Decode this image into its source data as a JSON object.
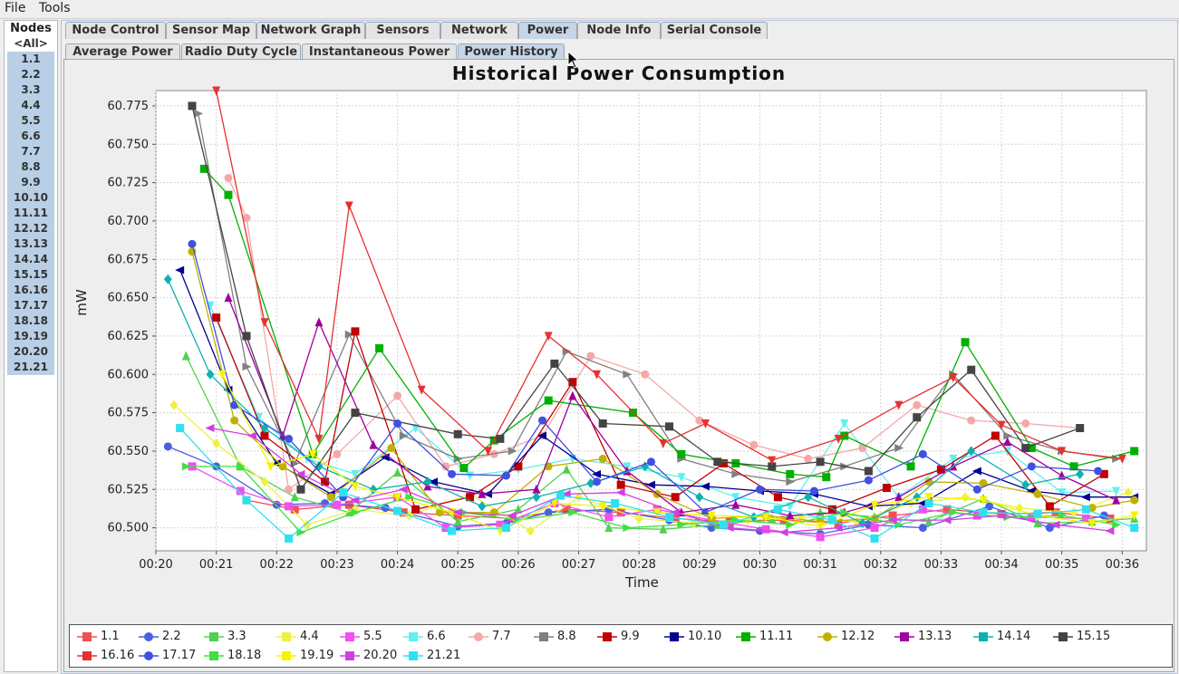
{
  "menubar": {
    "file": "File",
    "tools": "Tools"
  },
  "nodes": {
    "title": "Nodes",
    "items": [
      "<All>",
      "1.1",
      "2.2",
      "3.3",
      "4.4",
      "5.5",
      "6.6",
      "7.7",
      "8.8",
      "9.9",
      "10.10",
      "11.11",
      "12.12",
      "13.13",
      "14.14",
      "15.15",
      "16.16",
      "17.17",
      "18.18",
      "19.19",
      "20.20",
      "21.21"
    ]
  },
  "tabs": [
    "Node Control",
    "Sensor Map",
    "Network Graph",
    "Sensors",
    "Network",
    "Power",
    "Node Info",
    "Serial Console"
  ],
  "active_tab": "Power",
  "subtabs": [
    "Average Power",
    "Radio Duty Cycle",
    "Instantaneous Power",
    "Power History"
  ],
  "active_subtab": "Power History",
  "chart_data": {
    "type": "line",
    "title": "Historical Power Consumption",
    "xlabel": "Time",
    "ylabel": "mW",
    "x_ticks": [
      "00:20",
      "00:21",
      "00:22",
      "00:23",
      "00:24",
      "00:25",
      "00:26",
      "00:27",
      "00:28",
      "00:29",
      "00:30",
      "00:31",
      "00:32",
      "00:33",
      "00:34",
      "00:35",
      "00:36"
    ],
    "xlim": [
      20,
      36.4
    ],
    "y_ticks": [
      "60.500",
      "60.525",
      "60.550",
      "60.575",
      "60.600",
      "60.625",
      "60.650",
      "60.675",
      "60.700",
      "60.725",
      "60.750",
      "60.775"
    ],
    "ylim": [
      60.485,
      60.785
    ],
    "grid": true,
    "legend_position": "bottom",
    "series": [
      {
        "name": "1.1",
        "color": "#f05050",
        "marker": "square",
        "x": [
          21.5,
          22.3,
          23.2,
          24.1,
          25.0,
          25.9,
          26.8,
          27.7,
          28.6,
          29.5,
          30.4,
          31.3,
          32.2,
          33.1,
          34.0,
          34.9,
          35.8
        ],
        "y": [
          60.518,
          60.512,
          60.515,
          60.51,
          60.508,
          60.506,
          60.512,
          60.51,
          60.506,
          60.504,
          60.505,
          60.503,
          60.508,
          60.512,
          60.509,
          60.51,
          60.506
        ]
      },
      {
        "name": "2.2",
        "color": "#4a60e0",
        "marker": "circle",
        "x": [
          20.2,
          21.0,
          22.0,
          22.8,
          23.8,
          25.0,
          25.8,
          26.5,
          27.5,
          28.5,
          29.2,
          30.0,
          31.0,
          31.8,
          32.7,
          33.8,
          34.8,
          35.7
        ],
        "y": [
          60.553,
          60.54,
          60.515,
          60.516,
          60.513,
          60.501,
          60.503,
          60.51,
          60.512,
          60.505,
          60.5,
          60.498,
          60.496,
          60.502,
          60.5,
          60.514,
          60.5,
          60.508
        ]
      },
      {
        "name": "3.3",
        "color": "#50d050",
        "marker": "triangle-up",
        "x": [
          20.5,
          21.4,
          22.3,
          23.2,
          24.0,
          25.0,
          26.0,
          26.8,
          27.5,
          28.4,
          29.3,
          30.2,
          31.0,
          31.9,
          32.8,
          33.7,
          34.6,
          35.5,
          36.2
        ],
        "y": [
          60.612,
          60.54,
          60.52,
          60.51,
          60.536,
          60.504,
          60.512,
          60.538,
          60.5,
          60.499,
          60.502,
          60.506,
          60.51,
          60.507,
          60.504,
          60.519,
          60.503,
          60.504,
          60.506
        ]
      },
      {
        "name": "4.4",
        "color": "#f0f040",
        "marker": "diamond",
        "x": [
          20.3,
          21.0,
          21.8,
          22.5,
          23.3,
          24.2,
          25.2,
          26.2,
          27.0,
          28.0,
          28.9,
          29.8,
          30.7,
          31.6,
          32.5,
          33.4,
          34.3,
          35.2,
          36.1
        ],
        "y": [
          60.58,
          60.555,
          60.53,
          60.502,
          60.512,
          60.508,
          60.522,
          60.498,
          60.52,
          60.506,
          60.503,
          60.505,
          60.507,
          60.504,
          60.516,
          60.52,
          60.513,
          60.51,
          60.523
        ]
      },
      {
        "name": "5.5",
        "color": "#f050f0",
        "marker": "square",
        "x": [
          20.6,
          21.4,
          22.2,
          23.0,
          24.0,
          24.8,
          25.7,
          26.6,
          27.5,
          28.3,
          29.2,
          30.1,
          31.0,
          31.9,
          32.7,
          33.6,
          34.5,
          35.4
        ],
        "y": [
          60.54,
          60.524,
          60.514,
          60.515,
          60.52,
          60.5,
          60.502,
          60.516,
          60.507,
          60.512,
          60.505,
          60.499,
          60.494,
          60.5,
          60.512,
          60.508,
          60.507,
          60.506
        ]
      },
      {
        "name": "6.6",
        "color": "#60f0f0",
        "marker": "triangle-down",
        "x": [
          20.9,
          21.7,
          22.5,
          23.3,
          24.3,
          25.2,
          26.0,
          26.9,
          27.8,
          28.7,
          29.6,
          30.5,
          31.4,
          32.3,
          33.2,
          34.1,
          35.0,
          35.9
        ],
        "y": [
          60.645,
          60.572,
          60.545,
          60.535,
          60.565,
          60.534,
          60.538,
          60.545,
          60.54,
          60.533,
          60.52,
          60.514,
          60.568,
          60.52,
          60.545,
          60.55,
          60.523,
          60.524
        ]
      },
      {
        "name": "7.7",
        "color": "#f4a8a8",
        "marker": "circle",
        "x": [
          21.2,
          21.5,
          22.2,
          23.0,
          24.0,
          24.8,
          25.6,
          26.4,
          27.2,
          28.1,
          29.0,
          29.9,
          30.8,
          31.7,
          32.6,
          33.5,
          34.4,
          35.3
        ],
        "y": [
          60.728,
          60.702,
          60.525,
          60.548,
          60.586,
          60.54,
          60.548,
          60.56,
          60.612,
          60.6,
          60.57,
          60.554,
          60.545,
          60.552,
          60.58,
          60.57,
          60.568,
          60.565
        ]
      },
      {
        "name": "8.8",
        "color": "#808080",
        "marker": "triangle-right",
        "x": [
          20.7,
          21.5,
          22.3,
          23.2,
          24.1,
          25.0,
          25.9,
          26.8,
          27.8,
          28.7,
          29.6,
          30.5,
          31.4,
          32.3,
          33.2,
          34.1,
          35.0,
          35.9
        ],
        "y": [
          60.77,
          60.605,
          60.542,
          60.626,
          60.56,
          60.545,
          60.55,
          60.615,
          60.6,
          60.545,
          60.535,
          60.53,
          60.54,
          60.552,
          60.6,
          60.56,
          60.55,
          60.545
        ]
      },
      {
        "name": "9.9",
        "color": "#c00000",
        "marker": "square",
        "x": [
          21.0,
          21.8,
          22.8,
          23.3,
          24.3,
          25.2,
          26.0,
          26.9,
          27.7,
          28.6,
          29.4,
          30.3,
          31.2,
          32.1,
          33.0,
          33.9,
          34.8,
          35.7
        ],
        "y": [
          60.637,
          60.56,
          60.53,
          60.628,
          60.512,
          60.52,
          60.54,
          60.595,
          60.528,
          60.52,
          60.542,
          60.52,
          60.512,
          60.526,
          60.538,
          60.56,
          60.514,
          60.535
        ]
      },
      {
        "name": "10.10",
        "color": "#000090",
        "marker": "triangle-left",
        "x": [
          20.4,
          21.2,
          22.0,
          22.9,
          23.8,
          24.6,
          25.5,
          26.4,
          27.3,
          28.2,
          29.1,
          30.0,
          30.9,
          31.8,
          32.7,
          33.6,
          34.5,
          35.4,
          36.2
        ],
        "y": [
          60.668,
          60.59,
          60.542,
          60.522,
          60.546,
          60.53,
          60.522,
          60.56,
          60.535,
          60.528,
          60.527,
          60.524,
          60.522,
          60.514,
          60.516,
          60.537,
          60.524,
          60.52,
          60.52
        ]
      },
      {
        "name": "11.11",
        "color": "#00b000",
        "marker": "square",
        "x": [
          20.8,
          21.2,
          22.6,
          23.7,
          25.1,
          25.6,
          26.5,
          27.9,
          28.7,
          29.6,
          30.5,
          31.1,
          31.4,
          32.5,
          33.4,
          34.5,
          35.2,
          36.2
        ],
        "y": [
          60.734,
          60.717,
          60.548,
          60.617,
          60.539,
          60.557,
          60.583,
          60.575,
          60.548,
          60.542,
          60.535,
          60.533,
          60.56,
          60.54,
          60.621,
          60.552,
          60.54,
          60.55
        ]
      },
      {
        "name": "12.12",
        "color": "#c0b000",
        "marker": "circle",
        "x": [
          20.6,
          21.3,
          22.1,
          22.9,
          23.9,
          24.7,
          25.6,
          26.5,
          27.4,
          28.3,
          29.2,
          30.1,
          31.0,
          31.9,
          32.8,
          33.7,
          34.6,
          35.5,
          36.2
        ],
        "y": [
          60.68,
          60.57,
          60.54,
          60.52,
          60.552,
          60.51,
          60.51,
          60.54,
          60.545,
          60.522,
          60.506,
          60.508,
          60.504,
          60.506,
          60.53,
          60.529,
          60.522,
          60.513,
          60.518
        ]
      },
      {
        "name": "13.13",
        "color": "#a000a0",
        "marker": "triangle-up",
        "x": [
          21.2,
          22.1,
          22.7,
          23.6,
          24.5,
          25.4,
          26.3,
          26.9,
          27.8,
          28.7,
          29.6,
          30.5,
          31.4,
          32.3,
          33.2,
          34.1,
          35.0,
          35.9
        ],
        "y": [
          60.65,
          60.56,
          60.634,
          60.554,
          60.527,
          60.522,
          60.525,
          60.586,
          60.537,
          60.51,
          60.515,
          60.508,
          60.51,
          60.52,
          60.54,
          60.556,
          60.534,
          60.518
        ]
      },
      {
        "name": "14.14",
        "color": "#10b0b0",
        "marker": "diamond",
        "x": [
          20.2,
          20.9,
          21.8,
          22.7,
          23.6,
          24.5,
          25.4,
          26.3,
          27.2,
          28.1,
          29.0,
          29.9,
          30.8,
          31.7,
          32.6,
          33.5,
          34.4,
          35.3
        ],
        "y": [
          60.662,
          60.6,
          60.565,
          60.54,
          60.525,
          60.53,
          60.514,
          60.52,
          60.529,
          60.54,
          60.52,
          60.507,
          60.52,
          60.503,
          60.52,
          60.55,
          60.528,
          60.535
        ]
      },
      {
        "name": "15.15",
        "color": "#444444",
        "marker": "square",
        "x": [
          20.6,
          21.5,
          22.4,
          23.3,
          25.0,
          25.7,
          26.6,
          27.4,
          28.5,
          29.3,
          30.2,
          31.0,
          31.8,
          32.6,
          33.5,
          34.4,
          35.3
        ],
        "y": [
          60.775,
          60.625,
          60.525,
          60.575,
          60.561,
          60.558,
          60.607,
          60.568,
          60.566,
          60.543,
          60.54,
          60.543,
          60.537,
          60.572,
          60.603,
          60.552,
          60.565
        ]
      },
      {
        "name": "16.16",
        "color": "#e83030",
        "marker": "triangle-down",
        "x": [
          21.0,
          21.8,
          22.7,
          23.2,
          24.4,
          25.5,
          26.5,
          27.3,
          28.4,
          29.1,
          30.2,
          31.3,
          32.3,
          33.2,
          34.0,
          35.0,
          36.0
        ],
        "y": [
          60.785,
          60.634,
          60.558,
          60.71,
          60.59,
          60.55,
          60.625,
          60.6,
          60.555,
          60.568,
          60.544,
          60.558,
          60.58,
          60.598,
          60.567,
          60.55,
          60.545
        ]
      },
      {
        "name": "17.17",
        "color": "#4050e0",
        "marker": "circle",
        "x": [
          20.6,
          21.3,
          22.2,
          23.1,
          24.0,
          24.9,
          25.8,
          26.4,
          27.3,
          28.2,
          29.1,
          30.0,
          30.9,
          31.8,
          32.7,
          33.6,
          34.5,
          35.6
        ],
        "y": [
          60.685,
          60.58,
          60.558,
          60.52,
          60.568,
          60.535,
          60.534,
          60.57,
          60.53,
          60.543,
          60.51,
          60.525,
          60.524,
          60.531,
          60.548,
          60.525,
          60.54,
          60.537
        ]
      },
      {
        "name": "18.18",
        "color": "#40e040",
        "marker": "triangle-right",
        "x": [
          20.5,
          21.4,
          22.4,
          23.3,
          24.2,
          25.1,
          26.0,
          26.9,
          27.8,
          28.7,
          29.6,
          30.5,
          31.4,
          32.3,
          33.2,
          34.1,
          35.0,
          35.9
        ],
        "y": [
          60.54,
          60.54,
          60.497,
          60.51,
          60.52,
          60.51,
          60.505,
          60.51,
          60.5,
          60.502,
          60.505,
          60.502,
          60.51,
          60.502,
          60.51,
          60.507,
          60.508,
          60.502
        ]
      },
      {
        "name": "19.19",
        "color": "#f4f400",
        "marker": "triangle-down",
        "x": [
          21.1,
          21.9,
          22.6,
          23.3,
          24.0,
          24.9,
          25.7,
          26.6,
          27.4,
          28.3,
          29.2,
          30.1,
          31.0,
          31.9,
          32.8,
          33.7,
          34.6,
          35.5,
          36.2
        ],
        "y": [
          60.6,
          60.54,
          60.548,
          60.527,
          60.52,
          60.51,
          60.498,
          60.516,
          60.514,
          60.51,
          60.508,
          60.507,
          60.501,
          60.515,
          60.52,
          60.518,
          60.508,
          60.503,
          60.508
        ]
      },
      {
        "name": "20.20",
        "color": "#d040e0",
        "marker": "triangle-left",
        "x": [
          20.9,
          21.6,
          22.4,
          23.3,
          24.1,
          25.0,
          25.9,
          26.8,
          27.7,
          28.6,
          29.5,
          30.4,
          31.3,
          32.2,
          33.1,
          34.0,
          34.9,
          35.8
        ],
        "y": [
          60.565,
          60.56,
          60.535,
          60.518,
          60.525,
          60.51,
          60.508,
          60.522,
          60.523,
          60.51,
          60.5,
          60.497,
          60.5,
          60.505,
          60.505,
          60.508,
          60.502,
          60.498
        ]
      },
      {
        "name": "21.21",
        "color": "#30e0f0",
        "marker": "square",
        "x": [
          20.4,
          21.5,
          22.2,
          23.1,
          24.0,
          24.9,
          25.8,
          26.7,
          27.6,
          28.5,
          29.4,
          30.3,
          31.2,
          31.9,
          32.8,
          33.7,
          34.6,
          35.4,
          36.2
        ],
        "y": [
          60.565,
          60.518,
          60.493,
          60.523,
          60.511,
          60.498,
          60.5,
          60.521,
          60.516,
          60.507,
          60.502,
          60.512,
          60.505,
          60.493,
          60.516,
          60.51,
          60.509,
          60.512,
          60.5
        ]
      }
    ]
  }
}
